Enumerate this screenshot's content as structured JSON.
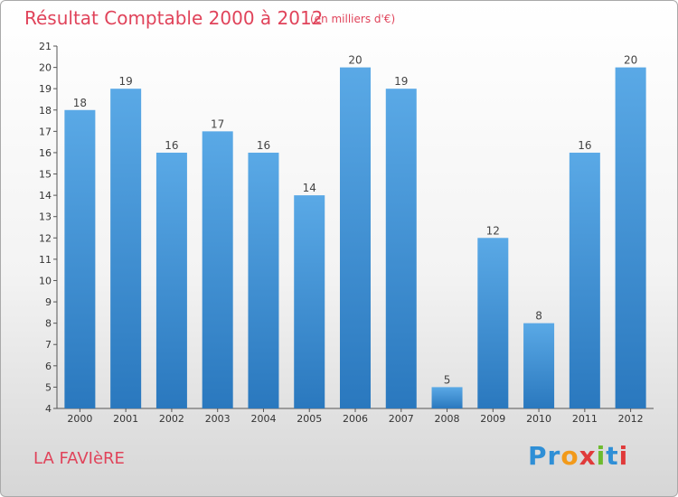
{
  "header": {
    "title": "Résultat Comptable 2000 à 2012",
    "subtitle": "(en milliers d'€)"
  },
  "footer": {
    "place": "LA FAVIèRE",
    "logo": [
      "P",
      "r",
      "o",
      "x",
      "i",
      "t",
      "i"
    ],
    "logo_colors": [
      "#2f8fd6",
      "#2f8fd6",
      "#f29a1a",
      "#e03a3a",
      "#6dbb2e",
      "#2f8fd6",
      "#e03a3a"
    ]
  },
  "colors": {
    "bar_top": "#5aa9e6",
    "bar_bottom": "#2a78be",
    "accent": "#e0435a"
  },
  "chart_data": {
    "type": "bar",
    "title": "Résultat Comptable 2000 à 2012",
    "subtitle": "(en milliers d'€)",
    "categories": [
      "2000",
      "2001",
      "2002",
      "2003",
      "2004",
      "2005",
      "2006",
      "2007",
      "2008",
      "2009",
      "2010",
      "2011",
      "2012"
    ],
    "values": [
      18,
      19,
      16,
      17,
      16,
      14,
      20,
      19,
      5,
      12,
      8,
      16,
      20
    ],
    "ylim": [
      4,
      21
    ],
    "yticks": [
      4,
      5,
      6,
      7,
      8,
      9,
      10,
      11,
      12,
      13,
      14,
      15,
      16,
      17,
      18,
      19,
      20,
      21
    ],
    "xlabel": "",
    "ylabel": "",
    "grid": false,
    "data_labels": true
  }
}
